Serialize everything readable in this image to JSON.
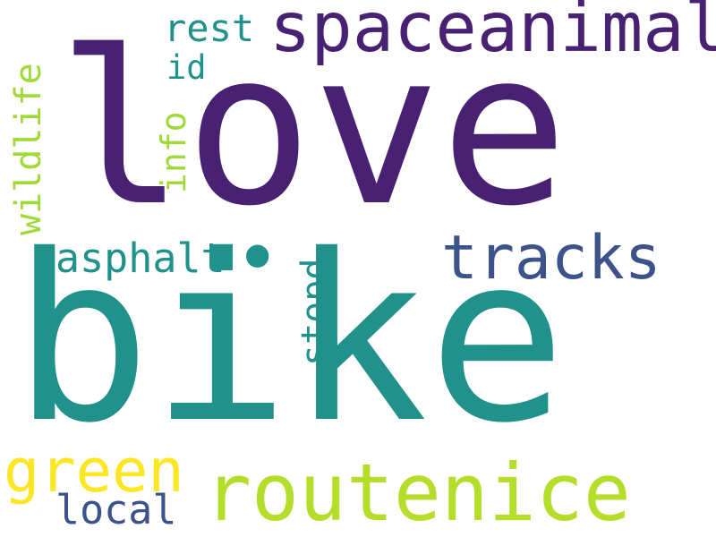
{
  "words": {
    "love": {
      "text": "love",
      "color": "#482173"
    },
    "bike": {
      "text": "bike",
      "color": "#21918c"
    },
    "spaceanimal": {
      "text": "spaceanimal",
      "color": "#482173"
    },
    "tracks": {
      "text": "tracks",
      "color": "#3b528b"
    },
    "routenice": {
      "text": "routenice",
      "color": "#b5de2b"
    },
    "green": {
      "text": "green",
      "color": "#fde725"
    },
    "local": {
      "text": "local",
      "color": "#3b528b"
    },
    "asphalt": {
      "text": "asphalt",
      "color": "#21918c"
    },
    "rest": {
      "text": "rest",
      "color": "#21918c"
    },
    "id": {
      "text": "id",
      "color": "#21918c"
    },
    "wildlife": {
      "text": "wildlife",
      "color": "#a0da39"
    },
    "info": {
      "text": "info",
      "color": "#a0da39"
    },
    "stopd": {
      "text": "stopd",
      "color": "#21918c"
    },
    "dot": {
      "text": "•",
      "color": "#21918c"
    }
  }
}
